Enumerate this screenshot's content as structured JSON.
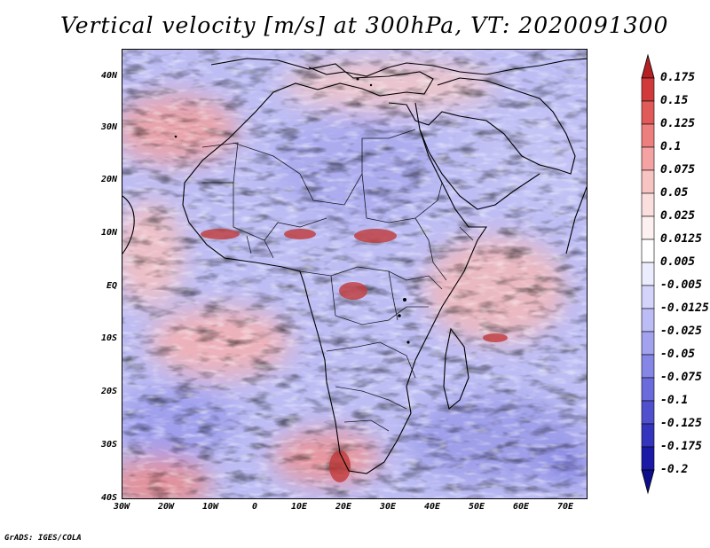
{
  "title": "Vertical velocity [m/s] at 300hPa, VT: 2020091300",
  "credit": "GrADS: IGES/COLA",
  "map": {
    "lat_labels": [
      "40N",
      "30N",
      "20N",
      "10N",
      "EQ",
      "10S",
      "20S",
      "30S",
      "40S"
    ],
    "lon_labels": [
      "30W",
      "20W",
      "10W",
      "0",
      "10E",
      "20E",
      "30E",
      "40E",
      "50E",
      "60E",
      "70E"
    ],
    "lat_range": [
      -40,
      45
    ],
    "lon_range": [
      -30,
      75
    ]
  },
  "colorbar": {
    "labels": [
      "0.175",
      "0.15",
      "0.125",
      "0.1",
      "0.075",
      "0.05",
      "0.025",
      "0.0125",
      "0.005",
      "-0.005",
      "-0.0125",
      "-0.025",
      "-0.05",
      "-0.075",
      "-0.1",
      "-0.125",
      "-0.175",
      "-0.2"
    ],
    "colors": [
      "#b52025",
      "#d03a3a",
      "#e05a5a",
      "#ee7f7f",
      "#f4a2a2",
      "#f8c3c3",
      "#fbdede",
      "#fdf0f0",
      "#ffffff",
      "#ececff",
      "#d4d4fb",
      "#bcbcf6",
      "#a2a2ef",
      "#8686e6",
      "#6b6bdb",
      "#5050cf",
      "#3434bd",
      "#1a1aa6",
      "#0e0e8c"
    ]
  }
}
